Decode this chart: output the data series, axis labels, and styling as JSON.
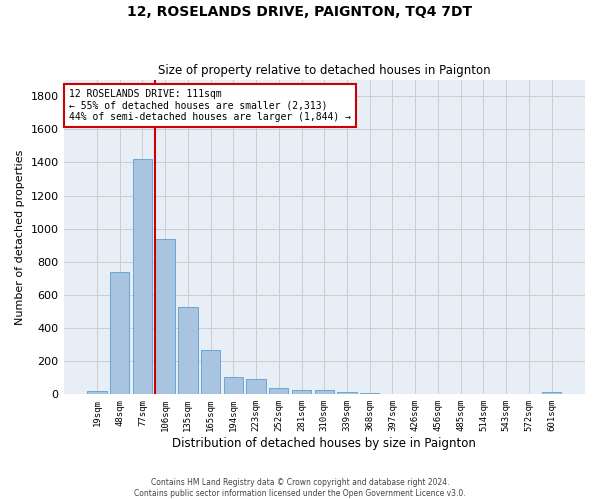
{
  "title": "12, ROSELANDS DRIVE, PAIGNTON, TQ4 7DT",
  "subtitle": "Size of property relative to detached houses in Paignton",
  "xlabel": "Distribution of detached houses by size in Paignton",
  "ylabel": "Number of detached properties",
  "categories": [
    "19sqm",
    "48sqm",
    "77sqm",
    "106sqm",
    "135sqm",
    "165sqm",
    "194sqm",
    "223sqm",
    "252sqm",
    "281sqm",
    "310sqm",
    "339sqm",
    "368sqm",
    "397sqm",
    "426sqm",
    "456sqm",
    "485sqm",
    "514sqm",
    "543sqm",
    "572sqm",
    "601sqm"
  ],
  "values": [
    20,
    740,
    1420,
    940,
    530,
    265,
    105,
    90,
    40,
    25,
    25,
    13,
    10,
    5,
    5,
    0,
    5,
    0,
    0,
    0,
    15
  ],
  "bar_color": "#a8c4e0",
  "bar_edge_color": "#5a9fd4",
  "vline_x_index": 3,
  "vline_color": "#cc0000",
  "annotation_text": "12 ROSELANDS DRIVE: 111sqm\n← 55% of detached houses are smaller (2,313)\n44% of semi-detached houses are larger (1,844) →",
  "annotation_box_color": "#ffffff",
  "annotation_box_edge": "#cc0000",
  "ylim": [
    0,
    1900
  ],
  "yticks": [
    0,
    200,
    400,
    600,
    800,
    1000,
    1200,
    1400,
    1600,
    1800
  ],
  "footer1": "Contains HM Land Registry data © Crown copyright and database right 2024.",
  "footer2": "Contains public sector information licensed under the Open Government Licence v3.0.",
  "grid_color": "#cccccc",
  "background_color": "#e8eef5"
}
